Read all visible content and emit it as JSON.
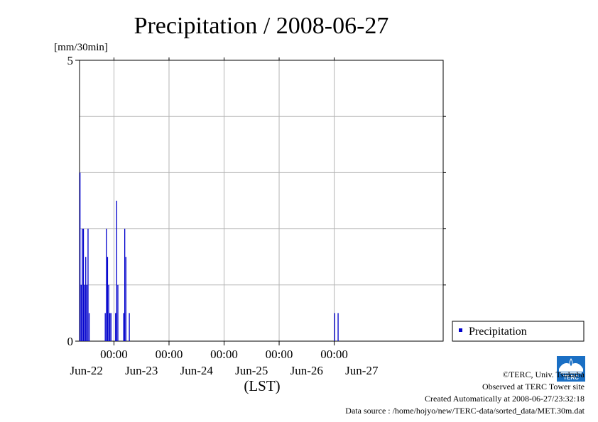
{
  "chart_data": {
    "type": "bar",
    "title": "Precipitation / 2008-06-27",
    "ylabel": "[mm/30min]",
    "xlabel": "(LST)",
    "ylim": [
      0,
      5
    ],
    "y_ticks": [
      0,
      5
    ],
    "xlim": [
      "2008-06-21 09:00",
      "2008-06-27 23:30"
    ],
    "x_tick_time_label": "00:00",
    "x_ticks": [
      "2008-06-22 00:00",
      "2008-06-23 00:00",
      "2008-06-24 00:00",
      "2008-06-25 00:00",
      "2008-06-26 00:00"
    ],
    "date_labels": [
      "Jun-22",
      "Jun-23",
      "Jun-24",
      "Jun-25",
      "Jun-26",
      "Jun-27"
    ],
    "grid": true,
    "legend": "right",
    "series": [
      {
        "name": "Precipitation",
        "color": "#0000cc",
        "points": [
          {
            "t": "2008-06-21 09:00",
            "v": 3.0
          },
          {
            "t": "2008-06-21 09:30",
            "v": 1.0
          },
          {
            "t": "2008-06-21 10:00",
            "v": 2.0
          },
          {
            "t": "2008-06-21 10:30",
            "v": 2.0
          },
          {
            "t": "2008-06-21 11:00",
            "v": 1.0
          },
          {
            "t": "2008-06-21 11:30",
            "v": 1.5
          },
          {
            "t": "2008-06-21 12:00",
            "v": 1.0
          },
          {
            "t": "2008-06-21 12:30",
            "v": 2.0
          },
          {
            "t": "2008-06-21 13:00",
            "v": 0.5
          },
          {
            "t": "2008-06-21 20:00",
            "v": 0.5
          },
          {
            "t": "2008-06-21 20:30",
            "v": 2.0
          },
          {
            "t": "2008-06-21 21:00",
            "v": 1.5
          },
          {
            "t": "2008-06-21 21:30",
            "v": 1.0
          },
          {
            "t": "2008-06-21 22:00",
            "v": 0.5
          },
          {
            "t": "2008-06-21 22:30",
            "v": 0.5
          },
          {
            "t": "2008-06-22 00:30",
            "v": 0.5
          },
          {
            "t": "2008-06-22 01:00",
            "v": 2.5
          },
          {
            "t": "2008-06-22 01:30",
            "v": 1.0
          },
          {
            "t": "2008-06-22 04:00",
            "v": 0.5
          },
          {
            "t": "2008-06-22 04:30",
            "v": 2.0
          },
          {
            "t": "2008-06-22 05:00",
            "v": 1.5
          },
          {
            "t": "2008-06-22 06:30",
            "v": 0.5
          },
          {
            "t": "2008-06-26 00:00",
            "v": 0.5
          },
          {
            "t": "2008-06-26 01:30",
            "v": 0.5
          }
        ]
      }
    ]
  },
  "credits": {
    "copyright": "©TERC, Univ. Tsukuba",
    "site": "Observed at TERC Tower site",
    "created": "Created Automatically at 2008-06-27/23:32:18",
    "source": "Data source : /home/hojyo/new/TERC-data/sorted_data/MET.30m.dat"
  },
  "logo_text": "TERC"
}
